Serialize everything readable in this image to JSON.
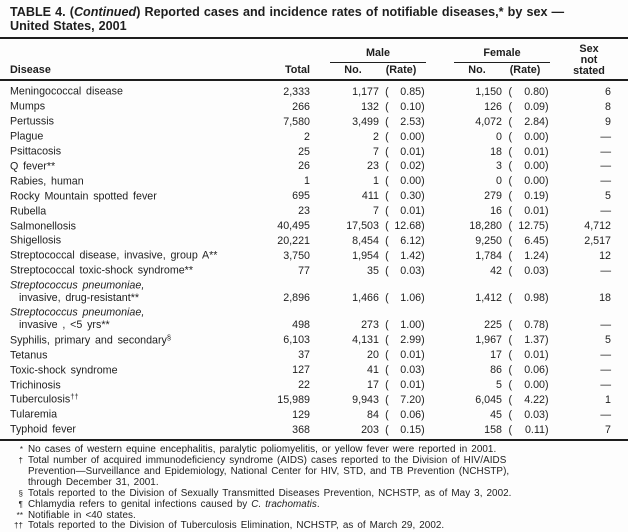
{
  "title": {
    "part1": "TABLE 4. (",
    "continued": "Continued",
    "part2": ") Reported cases and incidence rates of notifiable diseases,* by sex —",
    "line2": "United States, 2001"
  },
  "table": {
    "paren_open": "(",
    "paren_close": ")",
    "columns": {
      "disease": "Disease",
      "total": "Total",
      "male": "Male",
      "female": "Female",
      "no": "No.",
      "rate": "(Rate)",
      "sex_line1": "Sex",
      "sex_line2": "not",
      "sex_line3": "stated"
    },
    "rows": [
      {
        "name": "Meningococcal disease",
        "total": "2,333",
        "male_no": "1,177",
        "male_rate": "0.85",
        "female_no": "1,150",
        "female_rate": "0.80",
        "sexns": "6"
      },
      {
        "name": "Mumps",
        "total": "266",
        "male_no": "132",
        "male_rate": "0.10",
        "female_no": "126",
        "female_rate": "0.09",
        "sexns": "8"
      },
      {
        "name": "Pertussis",
        "total": "7,580",
        "male_no": "3,499",
        "male_rate": "2.53",
        "female_no": "4,072",
        "female_rate": "2.84",
        "sexns": "9"
      },
      {
        "name": "Plague",
        "total": "2",
        "male_no": "2",
        "male_rate": "0.00",
        "female_no": "0",
        "female_rate": "0.00",
        "sexns": "—"
      },
      {
        "name": "Psittacosis",
        "total": "25",
        "male_no": "7",
        "male_rate": "0.01",
        "female_no": "18",
        "female_rate": "0.01",
        "sexns": "—"
      },
      {
        "name": "Q fever**",
        "total": "26",
        "male_no": "23",
        "male_rate": "0.02",
        "female_no": "3",
        "female_rate": "0.00",
        "sexns": "—"
      },
      {
        "name": "Rabies, human",
        "total": "1",
        "male_no": "1",
        "male_rate": "0.00",
        "female_no": "0",
        "female_rate": "0.00",
        "sexns": "—"
      },
      {
        "name": "Rocky Mountain spotted fever",
        "total": "695",
        "male_no": "411",
        "male_rate": "0.30",
        "female_no": "279",
        "female_rate": "0.19",
        "sexns": "5"
      },
      {
        "name": "Rubella",
        "total": "23",
        "male_no": "7",
        "male_rate": "0.01",
        "female_no": "16",
        "female_rate": "0.01",
        "sexns": "—"
      },
      {
        "name": "Salmonellosis",
        "total": "40,495",
        "male_no": "17,503",
        "male_rate": "12.68",
        "female_no": "18,280",
        "female_rate": "12.75",
        "sexns": "4,712"
      },
      {
        "name": "Shigellosis",
        "total": "20,221",
        "male_no": "8,454",
        "male_rate": "6.12",
        "female_no": "9,250",
        "female_rate": "6.45",
        "sexns": "2,517"
      },
      {
        "name": "Streptococcal disease, invasive, group A**",
        "total": "3,750",
        "male_no": "1,954",
        "male_rate": "1.42",
        "female_no": "1,784",
        "female_rate": "1.24",
        "sexns": "12"
      },
      {
        "name": "Streptococcal toxic-shock syndrome**",
        "total": "77",
        "male_no": "35",
        "male_rate": "0.03",
        "female_no": "42",
        "female_rate": "0.03",
        "sexns": "—"
      },
      {
        "name": "Streptococcus pneumoniae,",
        "italic": true,
        "line2": "invasive, drug-resistant**",
        "total": "2,896",
        "male_no": "1,466",
        "male_rate": "1.06",
        "female_no": "1,412",
        "female_rate": "0.98",
        "sexns": "18"
      },
      {
        "name": "Streptococcus pneumoniae,",
        "italic": true,
        "line2": "invasive , <5 yrs**",
        "total": "498",
        "male_no": "273",
        "male_rate": "1.00",
        "female_no": "225",
        "female_rate": "0.78",
        "sexns": "—"
      },
      {
        "name": "Syphilis, primary and secondary",
        "sup": "§",
        "total": "6,103",
        "male_no": "4,131",
        "male_rate": "2.99",
        "female_no": "1,967",
        "female_rate": "1.37",
        "sexns": "5"
      },
      {
        "name": "Tetanus",
        "total": "37",
        "male_no": "20",
        "male_rate": "0.01",
        "female_no": "17",
        "female_rate": "0.01",
        "sexns": "—"
      },
      {
        "name": "Toxic-shock syndrome",
        "total": "127",
        "male_no": "41",
        "male_rate": "0.03",
        "female_no": "86",
        "female_rate": "0.06",
        "sexns": "—"
      },
      {
        "name": "Trichinosis",
        "total": "22",
        "male_no": "17",
        "male_rate": "0.01",
        "female_no": "5",
        "female_rate": "0.00",
        "sexns": "—"
      },
      {
        "name": "Tuberculosis",
        "sup": "††",
        "total": "15,989",
        "male_no": "9,943",
        "male_rate": "7.20",
        "female_no": "6,045",
        "female_rate": "4.22",
        "sexns": "1"
      },
      {
        "name": "Tularemia",
        "total": "129",
        "male_no": "84",
        "male_rate": "0.06",
        "female_no": "45",
        "female_rate": "0.03",
        "sexns": "—"
      },
      {
        "name": "Typhoid fever",
        "total": "368",
        "male_no": "203",
        "male_rate": "0.15",
        "female_no": "158",
        "female_rate": "0.11",
        "sexns": "7"
      }
    ]
  },
  "footnotes": [
    {
      "marker": "*",
      "pre": "No cases of western equine encephalitis, paralytic poliomyelitis, or yellow fever were reported in 2001."
    },
    {
      "marker": "†",
      "lines": [
        "Total number of acquired immunodeficiency syndrome (AIDS) cases reported to the Division of HIV/AIDS",
        "Prevention—Surveillance and Epidemiology, National Center for HIV, STD, and TB Prevention (NCHSTP),",
        "through December 31, 2001."
      ]
    },
    {
      "marker": "§",
      "pre": "Totals reported to the Division of Sexually Transmitted Diseases Prevention, NCHSTP, as of May 3, 2002."
    },
    {
      "marker": "¶",
      "pre": "Chlamydia refers to genital infections caused by ",
      "italic": "C. trachomatis",
      "post": "."
    },
    {
      "marker": "**",
      "pre": "Notifiable in <40 states."
    },
    {
      "marker": "††",
      "pre": "Totals reported to the Division of Tuberculosis Elimination, NCHSTP, as of March 29, 2002."
    }
  ]
}
